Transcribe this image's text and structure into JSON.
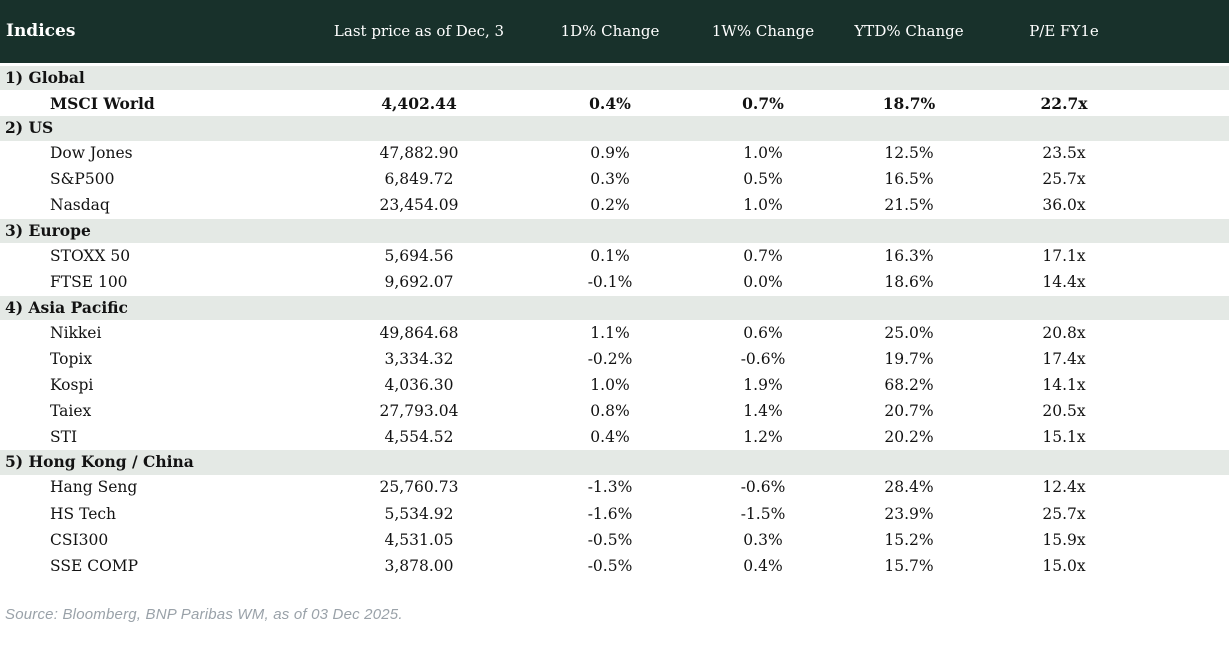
{
  "colors": {
    "header_bg": "#18312b",
    "header_text": "#ffffff",
    "section_bg": "#e4e9e5",
    "row_bg": "#ffffff",
    "text": "#121212",
    "positive": "#008b00",
    "negative": "#c53030",
    "source_text": "#9aa2a9"
  },
  "chart_data": {
    "type": "table",
    "title": "Indices",
    "columns": [
      "Indices",
      "Last price as of Dec, 3",
      "1D% Change",
      "1W% Change",
      "YTD% Change",
      "P/E FY1e"
    ],
    "sections": [
      {
        "label": "1) Global",
        "rows": [
          {
            "name": "MSCI World",
            "bold": true,
            "last_price": "4,402.44",
            "change_1d": "0.4%",
            "change_1w": "0.7%",
            "change_ytd": "18.7%",
            "pe_fy1e": "22.7x"
          }
        ]
      },
      {
        "label": "2) US",
        "rows": [
          {
            "name": "Dow Jones",
            "bold": false,
            "last_price": "47,882.90",
            "change_1d": "0.9%",
            "change_1w": "1.0%",
            "change_ytd": "12.5%",
            "pe_fy1e": "23.5x"
          },
          {
            "name": "S&P500",
            "bold": false,
            "last_price": "6,849.72",
            "change_1d": "0.3%",
            "change_1w": "0.5%",
            "change_ytd": "16.5%",
            "pe_fy1e": "25.7x"
          },
          {
            "name": "Nasdaq",
            "bold": false,
            "last_price": "23,454.09",
            "change_1d": "0.2%",
            "change_1w": "1.0%",
            "change_ytd": "21.5%",
            "pe_fy1e": "36.0x"
          }
        ]
      },
      {
        "label": "3) Europe",
        "rows": [
          {
            "name": "STOXX 50",
            "bold": false,
            "last_price": "5,694.56",
            "change_1d": "0.1%",
            "change_1w": "0.7%",
            "change_ytd": "16.3%",
            "pe_fy1e": "17.1x"
          },
          {
            "name": "FTSE 100",
            "bold": false,
            "last_price": "9,692.07",
            "change_1d": "-0.1%",
            "change_1w": "0.0%",
            "change_ytd": "18.6%",
            "pe_fy1e": "14.4x"
          }
        ]
      },
      {
        "label": "4) Asia Pacific",
        "rows": [
          {
            "name": "Nikkei",
            "bold": false,
            "last_price": "49,864.68",
            "change_1d": "1.1%",
            "change_1w": "0.6%",
            "change_ytd": "25.0%",
            "pe_fy1e": "20.8x"
          },
          {
            "name": "Topix",
            "bold": false,
            "last_price": "3,334.32",
            "change_1d": "-0.2%",
            "change_1w": "-0.6%",
            "change_ytd": "19.7%",
            "pe_fy1e": "17.4x"
          },
          {
            "name": "Kospi",
            "bold": false,
            "last_price": "4,036.30",
            "change_1d": "1.0%",
            "change_1w": "1.9%",
            "change_ytd": "68.2%",
            "pe_fy1e": "14.1x"
          },
          {
            "name": "Taiex",
            "bold": false,
            "last_price": "27,793.04",
            "change_1d": "0.8%",
            "change_1w": "1.4%",
            "change_ytd": "20.7%",
            "pe_fy1e": "20.5x"
          },
          {
            "name": "STI",
            "bold": false,
            "last_price": "4,554.52",
            "change_1d": "0.4%",
            "change_1w": "1.2%",
            "change_ytd": "20.2%",
            "pe_fy1e": "15.1x"
          }
        ]
      },
      {
        "label": "5) Hong Kong / China",
        "rows": [
          {
            "name": "Hang Seng",
            "bold": false,
            "last_price": "25,760.73",
            "change_1d": "-1.3%",
            "change_1w": "-0.6%",
            "change_ytd": "28.4%",
            "pe_fy1e": "12.4x"
          },
          {
            "name": "HS Tech",
            "bold": false,
            "last_price": "5,534.92",
            "change_1d": "-1.6%",
            "change_1w": "-1.5%",
            "change_ytd": "23.9%",
            "pe_fy1e": "25.7x"
          },
          {
            "name": "CSI300",
            "bold": false,
            "last_price": "4,531.05",
            "change_1d": "-0.5%",
            "change_1w": "0.3%",
            "change_ytd": "15.2%",
            "pe_fy1e": "15.9x"
          },
          {
            "name": "SSE COMP",
            "bold": false,
            "last_price": "3,878.00",
            "change_1d": "-0.5%",
            "change_1w": "0.4%",
            "change_ytd": "15.7%",
            "pe_fy1e": "15.0x"
          }
        ]
      }
    ],
    "source": "Source: Bloomberg, BNP Paribas WM, as of 03 Dec 2025."
  }
}
